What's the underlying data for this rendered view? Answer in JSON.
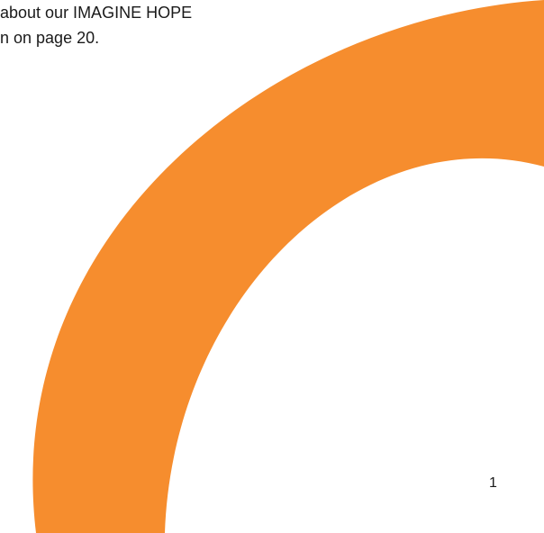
{
  "document": {
    "body_lines": [
      "about our IMAGINE HOPE",
      "n on page 20."
    ],
    "page_number": "1"
  },
  "colors": {
    "accent": "#F68D2E",
    "text": "#1a1a1a",
    "background": "#ffffff"
  }
}
